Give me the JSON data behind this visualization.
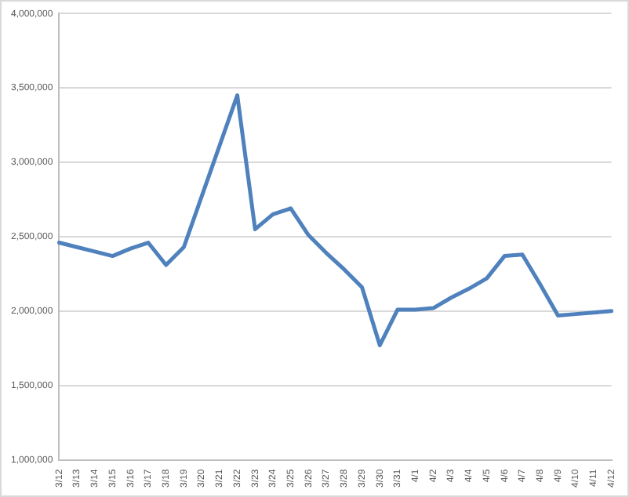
{
  "chart_data": {
    "type": "line",
    "categories": [
      "3/12",
      "3/13",
      "3/14",
      "3/15",
      "3/16",
      "3/17",
      "3/18",
      "3/19",
      "3/20",
      "3/21",
      "3/22",
      "3/23",
      "3/24",
      "3/25",
      "3/26",
      "3/27",
      "3/28",
      "3/29",
      "3/30",
      "3/31",
      "4/1",
      "4/2",
      "4/3",
      "4/4",
      "4/5",
      "4/6",
      "4/7",
      "4/8",
      "4/9",
      "4/10",
      "4/11",
      "4/12"
    ],
    "series": [
      {
        "color": "#4f81bd",
        "values": [
          2460000,
          2430000,
          2400000,
          2370000,
          2420000,
          2460000,
          2310000,
          2430000,
          2770000,
          3110000,
          3450000,
          2550000,
          2650000,
          2690000,
          2510000,
          2390000,
          2280000,
          2160000,
          1770000,
          2010000,
          2010000,
          2020000,
          2090000,
          2150000,
          2220000,
          2370000,
          2380000,
          2180000,
          1970000,
          1980000,
          1990000,
          2000000
        ]
      }
    ],
    "ylim": [
      1000000,
      4000000
    ],
    "yticks": [
      {
        "value": 1000000,
        "label": "1,000,000"
      },
      {
        "value": 1500000,
        "label": "1,500,000"
      },
      {
        "value": 2000000,
        "label": "2,000,000"
      },
      {
        "value": 2500000,
        "label": "2,500,000"
      },
      {
        "value": 3000000,
        "label": "3,000,000"
      },
      {
        "value": 3500000,
        "label": "3,500,000"
      },
      {
        "value": 4000000,
        "label": "4,000,000"
      }
    ],
    "grid": "y",
    "legend": false,
    "marker": "none",
    "line_style": "solid"
  }
}
